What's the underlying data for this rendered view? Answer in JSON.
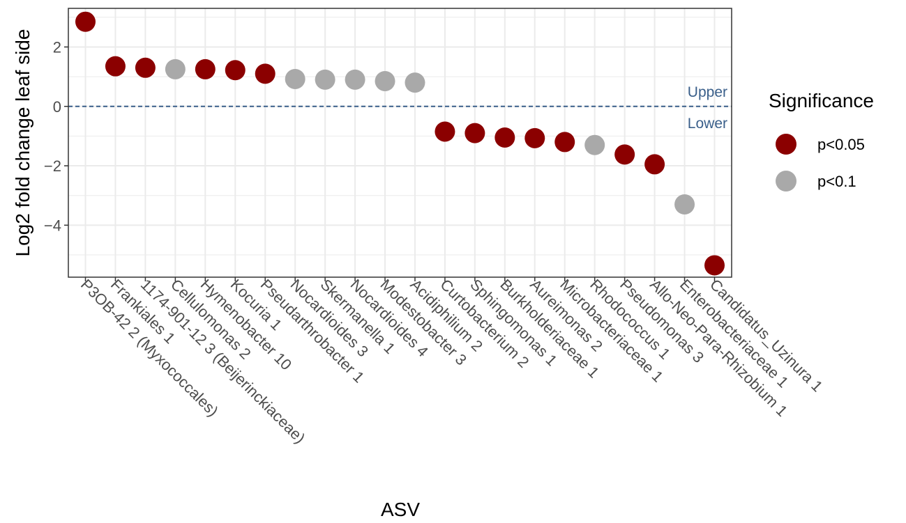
{
  "chart_data": {
    "type": "scatter",
    "xlabel": "ASV",
    "ylabel": "Log2 fold change leaf side",
    "categories": [
      "P3OB-42 2 (Myxococcales)",
      "Frankiales 1",
      "1174-901-12 3 (Beijerinckiaceae)",
      "Cellulomonas 2",
      "Hymenobacter 10",
      "Kocuria 1",
      "Pseudarthrobacter 1",
      "Nocardioides 3",
      "Skermanella 1",
      "Nocardioides 4",
      "Modestobacter 3",
      "Acidiphilium 2",
      "Curtobacterium 2",
      "Sphingomonas 1",
      "Burkholderiaceae 1",
      "Aureimonas 2",
      "Microbacteriaceae 1",
      "Rhodococcus 1",
      "Pseudomonas 3",
      "Allo-Neo-Para-Rhizobium 1",
      "Enterobacteriaceae 1",
      "Candidatus_Uzinura 1"
    ],
    "values": [
      2.85,
      1.35,
      1.3,
      1.25,
      1.25,
      1.22,
      1.1,
      0.92,
      0.9,
      0.9,
      0.85,
      0.8,
      -0.85,
      -0.9,
      -1.05,
      -1.07,
      -1.2,
      -1.3,
      -1.62,
      -1.95,
      -3.3,
      -5.35
    ],
    "significance": [
      "p<0.05",
      "p<0.05",
      "p<0.05",
      "p<0.1",
      "p<0.05",
      "p<0.05",
      "p<0.05",
      "p<0.1",
      "p<0.1",
      "p<0.1",
      "p<0.1",
      "p<0.1",
      "p<0.05",
      "p<0.05",
      "p<0.05",
      "p<0.05",
      "p<0.05",
      "p<0.1",
      "p<0.05",
      "p<0.05",
      "p<0.1",
      "p<0.05"
    ],
    "ylim": [
      -5.75,
      3.3
    ],
    "yticks": [
      2,
      0,
      -2,
      -4
    ],
    "ytick_labels": [
      "2",
      "0",
      "−2",
      "−4"
    ],
    "reference_line": {
      "y": 0,
      "style": "dashed",
      "color": "#3A5F8A",
      "upper_label": "Upper",
      "lower_label": "Lower"
    },
    "legend": {
      "title": "Significance",
      "position": "right",
      "entries": [
        {
          "label": "p<0.05",
          "color": "#8B0000"
        },
        {
          "label": "p<0.1",
          "color": "#A9A9A9"
        }
      ]
    },
    "grid": true,
    "colors": {
      "p<0.05": "#8B0000",
      "p<0.1": "#A9A9A9",
      "grid": "#EBEBEB",
      "axis_text": "#4D4D4D"
    }
  }
}
